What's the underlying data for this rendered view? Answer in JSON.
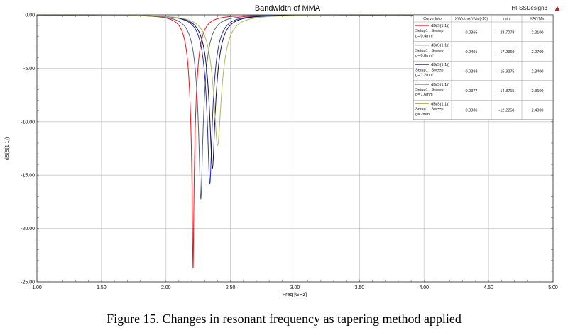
{
  "chart_data": {
    "type": "line",
    "title": "Bandwidth of MMA",
    "design_label": "HFSSDesign3",
    "xlabel": "Freq [GHz]",
    "ylabel": "dB(S(1,1))",
    "xlim": [
      1.0,
      5.0
    ],
    "ylim": [
      -25.0,
      0.0
    ],
    "x_ticks": [
      "1.00",
      "1.50",
      "2.00",
      "2.50",
      "3.00",
      "3.50",
      "4.00",
      "4.50",
      "5.00"
    ],
    "y_ticks": [
      "0.00",
      "-5.00",
      "-10.00",
      "-15.00",
      "-20.00",
      "-25.00"
    ],
    "grid": true,
    "legend_position": "top-right",
    "legend_columns": [
      "Curve Info",
      "XWidthAtYVal(-10)",
      "min",
      "XAtYMin"
    ],
    "series": [
      {
        "name_lines": [
          "dB(S(1,1))",
          "Setup1 : Sweep",
          "g='0.4mm'"
        ],
        "color": "#e8141c",
        "xwidth": "0.0365",
        "min": "-23.7078",
        "xatymin": "2.2100",
        "min_value": -23.7078,
        "fmin": 2.21,
        "width": 0.0365
      },
      {
        "name_lines": [
          "dB(S(1,1))",
          "Setup1 : Sweep",
          "g='0.8mm'"
        ],
        "color": "#55607a",
        "xwidth": "0.0401",
        "min": "-17.2369",
        "xatymin": "2.2700",
        "min_value": -17.2369,
        "fmin": 2.27,
        "width": 0.0401
      },
      {
        "name_lines": [
          "dB(S(1,1))",
          "Setup1 : Sweep",
          "g='1.2mm'"
        ],
        "color": "#2b2f9e",
        "xwidth": "0.0393",
        "min": "-15.8275",
        "xatymin": "2.3400",
        "min_value": -15.8275,
        "fmin": 2.34,
        "width": 0.0393
      },
      {
        "name_lines": [
          "dB(S(1,1))",
          "Setup1 : Sweep",
          "g='1.6mm'"
        ],
        "color": "#14143c",
        "xwidth": "0.0377",
        "min": "-14.3715",
        "xatymin": "2.3600",
        "min_value": -14.3715,
        "fmin": 2.36,
        "width": 0.0377
      },
      {
        "name_lines": [
          "dB(S(1,1))",
          "Setup1 : Sweep",
          "g='2mm'"
        ],
        "color": "#b4b464",
        "xwidth": "0.0336",
        "min": "-12.2258",
        "xatymin": "2.4000",
        "min_value": -12.2258,
        "fmin": 2.4,
        "width": 0.0336
      }
    ]
  },
  "caption": "Figure 15. Changes in resonant frequency as tapering method applied"
}
